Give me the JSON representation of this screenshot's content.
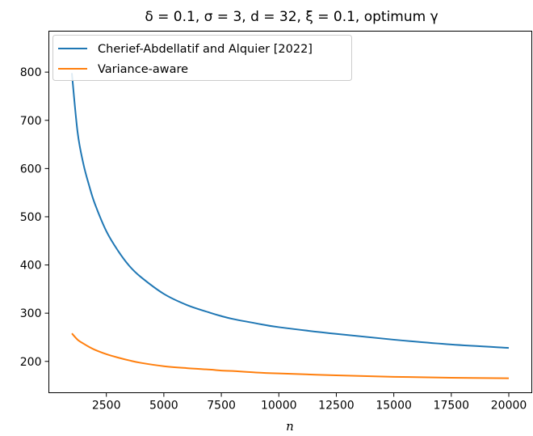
{
  "chart_data": {
    "type": "line",
    "title": "δ = 0.1, σ = 3, d = 32, ξ = 0.1, optimum γ",
    "xlabel": "n",
    "ylabel": "",
    "xlim": [
      0,
      21000
    ],
    "ylim": [
      135,
      885
    ],
    "xticks": [
      2500,
      5000,
      7500,
      10000,
      12500,
      15000,
      17500,
      20000
    ],
    "xtick_labels": [
      "2500",
      "5000",
      "7500",
      "10000",
      "12500",
      "15000",
      "17500",
      "20000"
    ],
    "yticks": [
      200,
      300,
      400,
      500,
      600,
      700,
      800
    ],
    "ytick_labels": [
      "200",
      "300",
      "400",
      "500",
      "600",
      "700",
      "800"
    ],
    "grid": false,
    "legend_position": "top-left",
    "series": [
      {
        "name": "Cherief-Abdellatif and Alquier [2022]",
        "color": "#1f77b4",
        "x": [
          1000,
          1250,
          1500,
          1750,
          2000,
          2500,
          3000,
          3500,
          4000,
          5000,
          6000,
          7000,
          7500,
          8000,
          9000,
          10000,
          12500,
          15000,
          17500,
          20000
        ],
        "y": [
          798,
          675,
          610,
          565,
          527,
          470,
          430,
          398,
          375,
          340,
          317,
          301,
          294,
          288,
          279,
          271,
          257,
          245,
          235,
          228
        ]
      },
      {
        "name": "Variance-aware",
        "color": "#ff7f0e",
        "x": [
          1000,
          1250,
          1500,
          1750,
          2000,
          2500,
          3000,
          3500,
          4000,
          5000,
          6000,
          7000,
          7500,
          8000,
          9000,
          10000,
          12500,
          15000,
          17500,
          20000
        ],
        "y": [
          258,
          245,
          237,
          230,
          224,
          215,
          208,
          202,
          197,
          190,
          186,
          183,
          181,
          180,
          177,
          175,
          171,
          168,
          166,
          165
        ]
      }
    ]
  }
}
